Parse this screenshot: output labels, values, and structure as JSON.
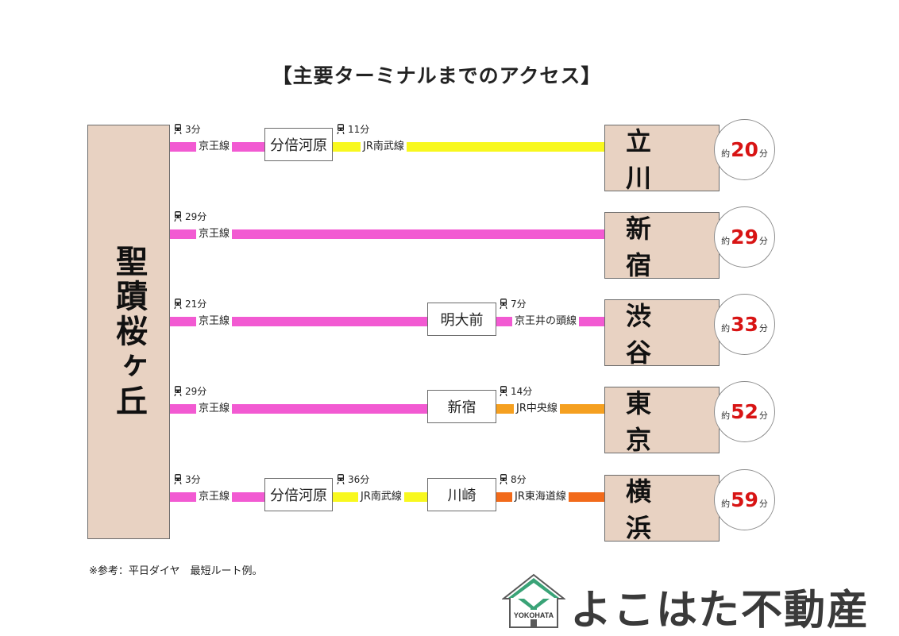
{
  "title": "【主要ターミナルまでのアクセス】",
  "origin": "聖蹟桜ヶ丘",
  "colors": {
    "keio": "#f25ad2",
    "nambu": "#f8f81e",
    "chuo": "#f5a020",
    "tokaido": "#f26a1a",
    "box_bg": "#e8d2c2"
  },
  "routes": [
    {
      "segments": [
        {
          "line": "京王線",
          "time": "3分"
        },
        {
          "line": "JR南武線",
          "time": "11分"
        }
      ],
      "transfers": [
        "分倍河原"
      ],
      "destination": "立　川",
      "total_prefix": "約",
      "total": "20",
      "total_unit": "分"
    },
    {
      "segments": [
        {
          "line": "京王線",
          "time": "29分"
        }
      ],
      "transfers": [],
      "destination": "新　宿",
      "total_prefix": "約",
      "total": "29",
      "total_unit": "分"
    },
    {
      "segments": [
        {
          "line": "京王線",
          "time": "21分"
        },
        {
          "line": "京王井の頭線",
          "time": "7分"
        }
      ],
      "transfers": [
        "明大前"
      ],
      "destination": "渋　谷",
      "total_prefix": "約",
      "total": "33",
      "total_unit": "分"
    },
    {
      "segments": [
        {
          "line": "京王線",
          "time": "29分"
        },
        {
          "line": "JR中央線",
          "time": "14分"
        }
      ],
      "transfers": [
        "新宿"
      ],
      "destination": "東　京",
      "total_prefix": "約",
      "total": "52",
      "total_unit": "分"
    },
    {
      "segments": [
        {
          "line": "京王線",
          "time": "3分"
        },
        {
          "line": "JR南武線",
          "time": "36分"
        },
        {
          "line": "JR東海道線",
          "time": "8分"
        }
      ],
      "transfers": [
        "分倍河原",
        "川崎"
      ],
      "destination": "横　浜",
      "total_prefix": "約",
      "total": "59",
      "total_unit": "分"
    }
  ],
  "note": "※参考：平日ダイヤ　最短ルート例。",
  "logo": {
    "text": "よこはた不動産",
    "emblem": "YOKOHATA",
    "icon": "house-y-logo-icon"
  }
}
